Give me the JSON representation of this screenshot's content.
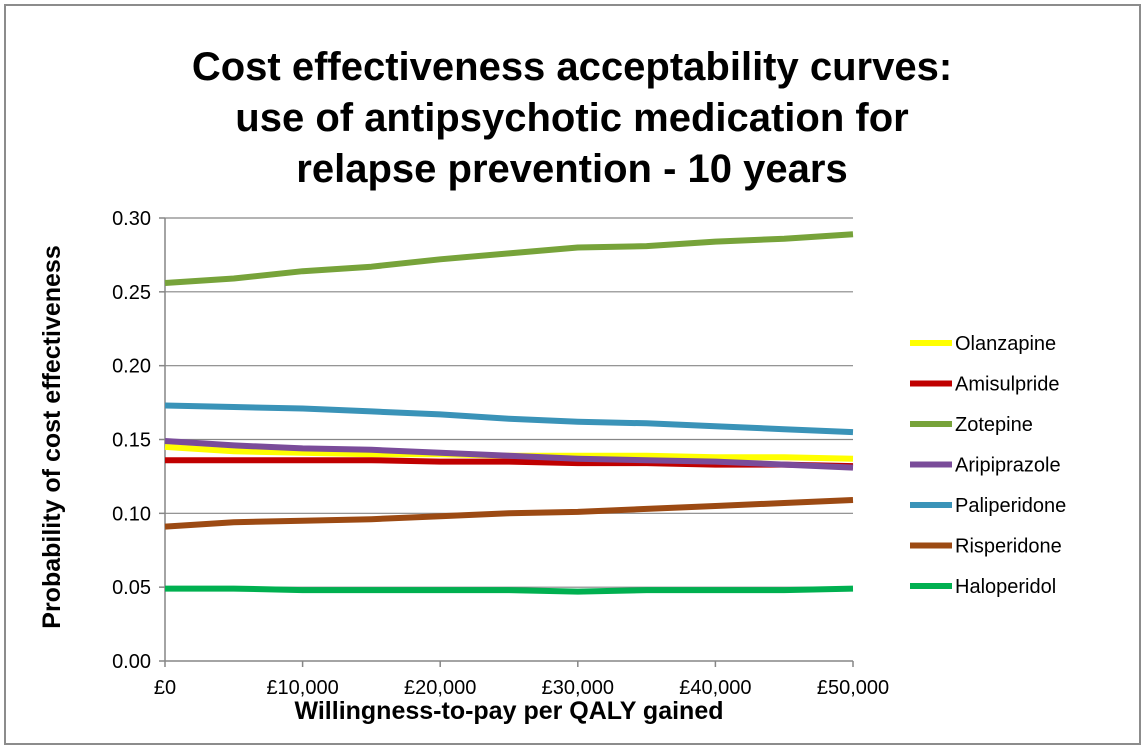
{
  "chart_data": {
    "type": "line",
    "title_lines": [
      "Cost effectiveness acceptability curves:",
      "use of antipsychotic medication for",
      "relapse prevention - 10 years"
    ],
    "xlabel": "Willingness-to-pay per QALY gained",
    "ylabel": "Probability of cost effectiveness",
    "x": [
      0,
      5000,
      10000,
      15000,
      20000,
      25000,
      30000,
      35000,
      40000,
      45000,
      50000
    ],
    "x_tick_values": [
      0,
      10000,
      20000,
      30000,
      40000,
      50000
    ],
    "x_tick_labels": [
      "£0",
      "£10,000",
      "£20,000",
      "£30,000",
      "£40,000",
      "£50,000"
    ],
    "xlim": [
      0,
      50000
    ],
    "y_tick_values": [
      0,
      0.05,
      0.1,
      0.15,
      0.2,
      0.25,
      0.3
    ],
    "y_tick_labels": [
      "0.00",
      "0.05",
      "0.10",
      "0.15",
      "0.20",
      "0.25",
      "0.30"
    ],
    "ylim": [
      0,
      0.3
    ],
    "grid": "horizontal",
    "legend_placement": "right",
    "series": [
      {
        "name": "Olanzapine",
        "color": "#ffff00",
        "values": [
          0.145,
          0.142,
          0.141,
          0.14,
          0.14,
          0.139,
          0.139,
          0.139,
          0.138,
          0.138,
          0.137
        ]
      },
      {
        "name": "Amisulpride",
        "color": "#c00000",
        "values": [
          0.136,
          0.136,
          0.136,
          0.136,
          0.135,
          0.135,
          0.134,
          0.134,
          0.133,
          0.133,
          0.132
        ]
      },
      {
        "name": "Zotepine",
        "color": "#77a33a",
        "values": [
          0.256,
          0.259,
          0.264,
          0.267,
          0.272,
          0.276,
          0.28,
          0.281,
          0.284,
          0.286,
          0.289
        ]
      },
      {
        "name": "Aripiprazole",
        "color": "#7a4c9a",
        "values": [
          0.149,
          0.146,
          0.144,
          0.143,
          0.141,
          0.139,
          0.137,
          0.136,
          0.135,
          0.133,
          0.131
        ]
      },
      {
        "name": "Paliperidone",
        "color": "#3a93b8",
        "values": [
          0.173,
          0.172,
          0.171,
          0.169,
          0.167,
          0.164,
          0.162,
          0.161,
          0.159,
          0.157,
          0.155
        ]
      },
      {
        "name": "Risperidone",
        "color": "#9c4a13",
        "values": [
          0.091,
          0.094,
          0.095,
          0.096,
          0.098,
          0.1,
          0.101,
          0.103,
          0.105,
          0.107,
          0.109
        ]
      },
      {
        "name": "Haloperidol",
        "color": "#00b050",
        "values": [
          0.049,
          0.049,
          0.048,
          0.048,
          0.048,
          0.048,
          0.047,
          0.048,
          0.048,
          0.048,
          0.049
        ]
      }
    ]
  }
}
